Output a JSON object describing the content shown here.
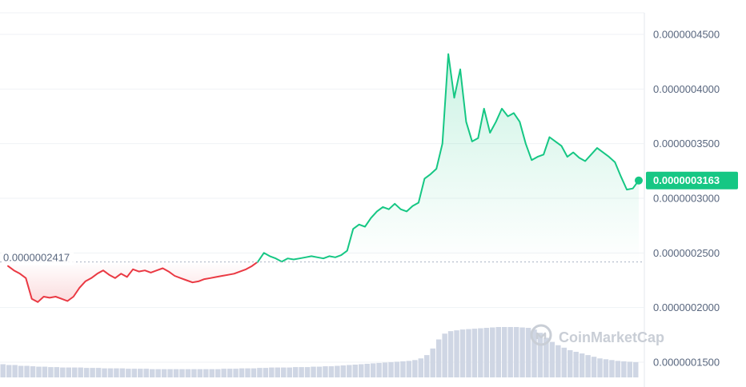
{
  "chart_data": {
    "type": "area",
    "y_axis_ticks": [
      "0.0000001500",
      "0.0000002000",
      "0.0000002500",
      "0.0000003000",
      "0.0000003500",
      "0.0000004000",
      "0.0000004500"
    ],
    "y_tick_values": [
      1.5e-07,
      2e-07,
      2.5e-07,
      3e-07,
      3.5e-07,
      4e-07,
      4.5e-07
    ],
    "ylim": [
      1.4e-07,
      4.7e-07
    ],
    "grid": true,
    "baseline": {
      "value": 2.417e-07,
      "label": "0.0000002417"
    },
    "current_price": {
      "value": 3.163e-07,
      "label": "0.0000003163"
    },
    "colors": {
      "up": "#16c784",
      "down": "#ea3943",
      "volume": "#cfd6e4",
      "grid": "#eff2f5"
    },
    "watermark": "CoinMarketCap",
    "series": [
      {
        "values": [
          2.38e-07,
          2.34e-07,
          2.31e-07,
          2.27e-07,
          2.08e-07,
          2.05e-07,
          2.1e-07,
          2.09e-07,
          2.1e-07,
          2.08e-07,
          2.06e-07,
          2.1e-07,
          2.18e-07,
          2.24e-07,
          2.27e-07,
          2.31e-07,
          2.34e-07,
          2.3e-07,
          2.27e-07,
          2.31e-07,
          2.28e-07,
          2.35e-07,
          2.33e-07,
          2.34e-07,
          2.32e-07,
          2.34e-07,
          2.36e-07,
          2.33e-07,
          2.29e-07,
          2.27e-07,
          2.25e-07,
          2.23e-07,
          2.24e-07,
          2.26e-07,
          2.27e-07,
          2.28e-07,
          2.29e-07,
          2.3e-07,
          2.31e-07,
          2.33e-07,
          2.35e-07,
          2.38e-07,
          2.42e-07,
          2.5e-07,
          2.47e-07,
          2.45e-07,
          2.42e-07,
          2.45e-07,
          2.44e-07,
          2.45e-07,
          2.46e-07,
          2.47e-07,
          2.46e-07,
          2.45e-07,
          2.47e-07,
          2.46e-07,
          2.48e-07,
          2.52e-07,
          2.72e-07,
          2.76e-07,
          2.74e-07,
          2.82e-07,
          2.88e-07,
          2.92e-07,
          2.9e-07,
          2.95e-07,
          2.9e-07,
          2.88e-07,
          2.93e-07,
          2.96e-07,
          3.18e-07,
          3.22e-07,
          3.27e-07,
          3.5e-07,
          4.32e-07,
          3.92e-07,
          4.18e-07,
          3.7e-07,
          3.52e-07,
          3.55e-07,
          3.82e-07,
          3.6e-07,
          3.7e-07,
          3.82e-07,
          3.75e-07,
          3.78e-07,
          3.7e-07,
          3.5e-07,
          3.35e-07,
          3.38e-07,
          3.4e-07,
          3.56e-07,
          3.52e-07,
          3.48e-07,
          3.38e-07,
          3.42e-07,
          3.37e-07,
          3.34e-07,
          3.4e-07,
          3.46e-07,
          3.42e-07,
          3.38e-07,
          3.33e-07,
          3.2e-07,
          3.08e-07,
          3.09e-07,
          3.163e-07
        ]
      }
    ],
    "volume": [
      1.6,
      1.5,
      1.5,
      1.4,
      1.4,
      1.35,
      1.3,
      1.3,
      1.25,
      1.25,
      1.2,
      1.2,
      1.2,
      1.2,
      1.15,
      1.15,
      1.15,
      1.1,
      1.1,
      1.1,
      1.1,
      1.05,
      1.05,
      1.05,
      1.05,
      1.0,
      1.0,
      1.0,
      1.0,
      1.0,
      1.0,
      1.0,
      1.0,
      1.0,
      1.0,
      1.0,
      1.0,
      1.05,
      1.05,
      1.05,
      1.1,
      1.1,
      1.1,
      1.15,
      1.15,
      1.2,
      1.2,
      1.2,
      1.2,
      1.25,
      1.25,
      1.25,
      1.3,
      1.3,
      1.35,
      1.35,
      1.4,
      1.45,
      1.5,
      1.55,
      1.6,
      1.65,
      1.7,
      1.75,
      1.8,
      1.85,
      1.9,
      1.95,
      2.0,
      2.1,
      2.3,
      2.7,
      3.5,
      4.6,
      5.3,
      5.6,
      5.7,
      5.8,
      5.85,
      5.9,
      5.95,
      6.0,
      6.05,
      6.1,
      6.1,
      6.1,
      6.1,
      6.05,
      6.0,
      5.8,
      5.4,
      4.8,
      4.3,
      3.9,
      3.6,
      3.3,
      3.1,
      2.9,
      2.7,
      2.5,
      2.3,
      2.2,
      2.1,
      2.0,
      1.95,
      1.9,
      1.85
    ]
  }
}
